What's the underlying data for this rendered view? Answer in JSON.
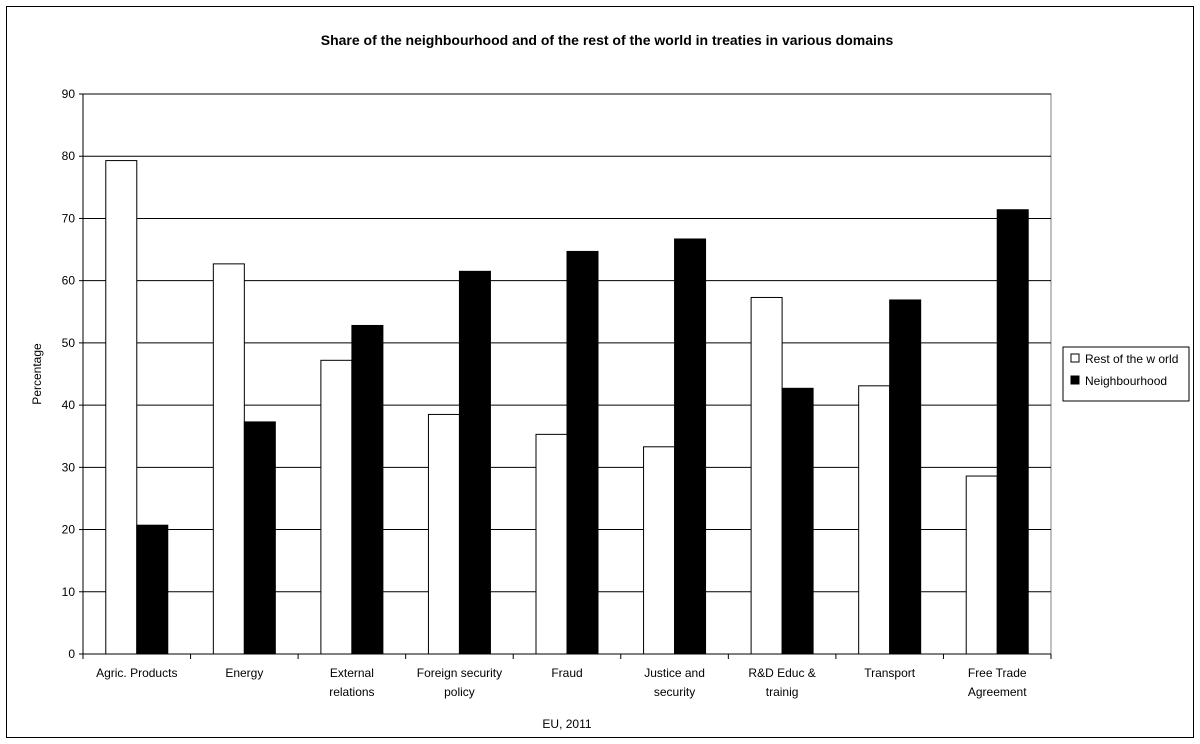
{
  "chart_data": {
    "type": "bar",
    "title": "Share of the neighbourhood and of the rest of the world in treaties in various domains",
    "xlabel": "EU, 2011",
    "ylabel": "Percentage",
    "ylim": [
      0,
      90
    ],
    "yticks": [
      0,
      10,
      20,
      30,
      40,
      50,
      60,
      70,
      80,
      90
    ],
    "grid": true,
    "legend_position": "right",
    "categories": [
      [
        "Agric. Products"
      ],
      [
        "Energy"
      ],
      [
        "External",
        "relations"
      ],
      [
        "Foreign security",
        "policy"
      ],
      [
        "Fraud"
      ],
      [
        "Justice and",
        "security"
      ],
      [
        "R&D Educ &",
        "trainig"
      ],
      [
        "Transport"
      ],
      [
        "Free Trade",
        "Agreement"
      ]
    ],
    "series": [
      {
        "name": "Rest of the w orld",
        "color": "#ffffff",
        "values": [
          79.3,
          62.7,
          47.2,
          38.5,
          35.3,
          33.3,
          57.3,
          43.1,
          28.6
        ]
      },
      {
        "name": "Neighbourhood",
        "color": "#000000",
        "values": [
          20.7,
          37.3,
          52.8,
          61.5,
          64.7,
          66.7,
          42.7,
          56.9,
          71.4
        ]
      }
    ]
  }
}
